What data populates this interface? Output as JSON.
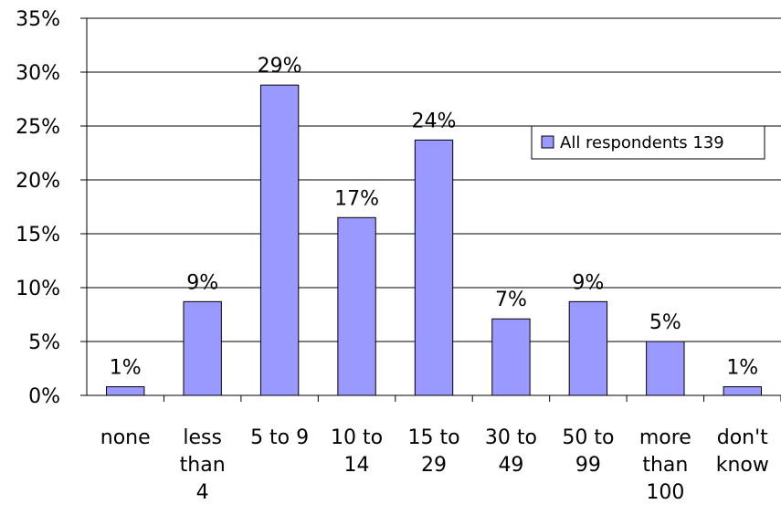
{
  "chart_data": {
    "type": "bar",
    "title": "",
    "xlabel": "",
    "ylabel": "",
    "ylim": [
      0,
      35
    ],
    "y_ticks": [
      "0%",
      "5%",
      "10%",
      "15%",
      "20%",
      "25%",
      "30%",
      "35%"
    ],
    "y_tick_values": [
      0,
      5,
      10,
      15,
      20,
      25,
      30,
      35
    ],
    "categories": [
      [
        "none"
      ],
      [
        "less",
        "than",
        "4"
      ],
      [
        "5 to 9"
      ],
      [
        "10 to",
        "14"
      ],
      [
        "15 to",
        "29"
      ],
      [
        "30 to",
        "49"
      ],
      [
        "50 to",
        "99"
      ],
      [
        "more",
        "than",
        "100"
      ],
      [
        "don't",
        "know"
      ]
    ],
    "series": [
      {
        "name": "All respondents 139",
        "values": [
          0.8,
          8.7,
          28.8,
          16.5,
          23.7,
          7.1,
          8.7,
          5.0,
          0.8
        ],
        "labels": [
          "1%",
          "9%",
          "29%",
          "17%",
          "24%",
          "7%",
          "9%",
          "5%",
          "1%"
        ],
        "color": "#9999ff"
      }
    ],
    "grid": true,
    "legend_position": "right"
  }
}
